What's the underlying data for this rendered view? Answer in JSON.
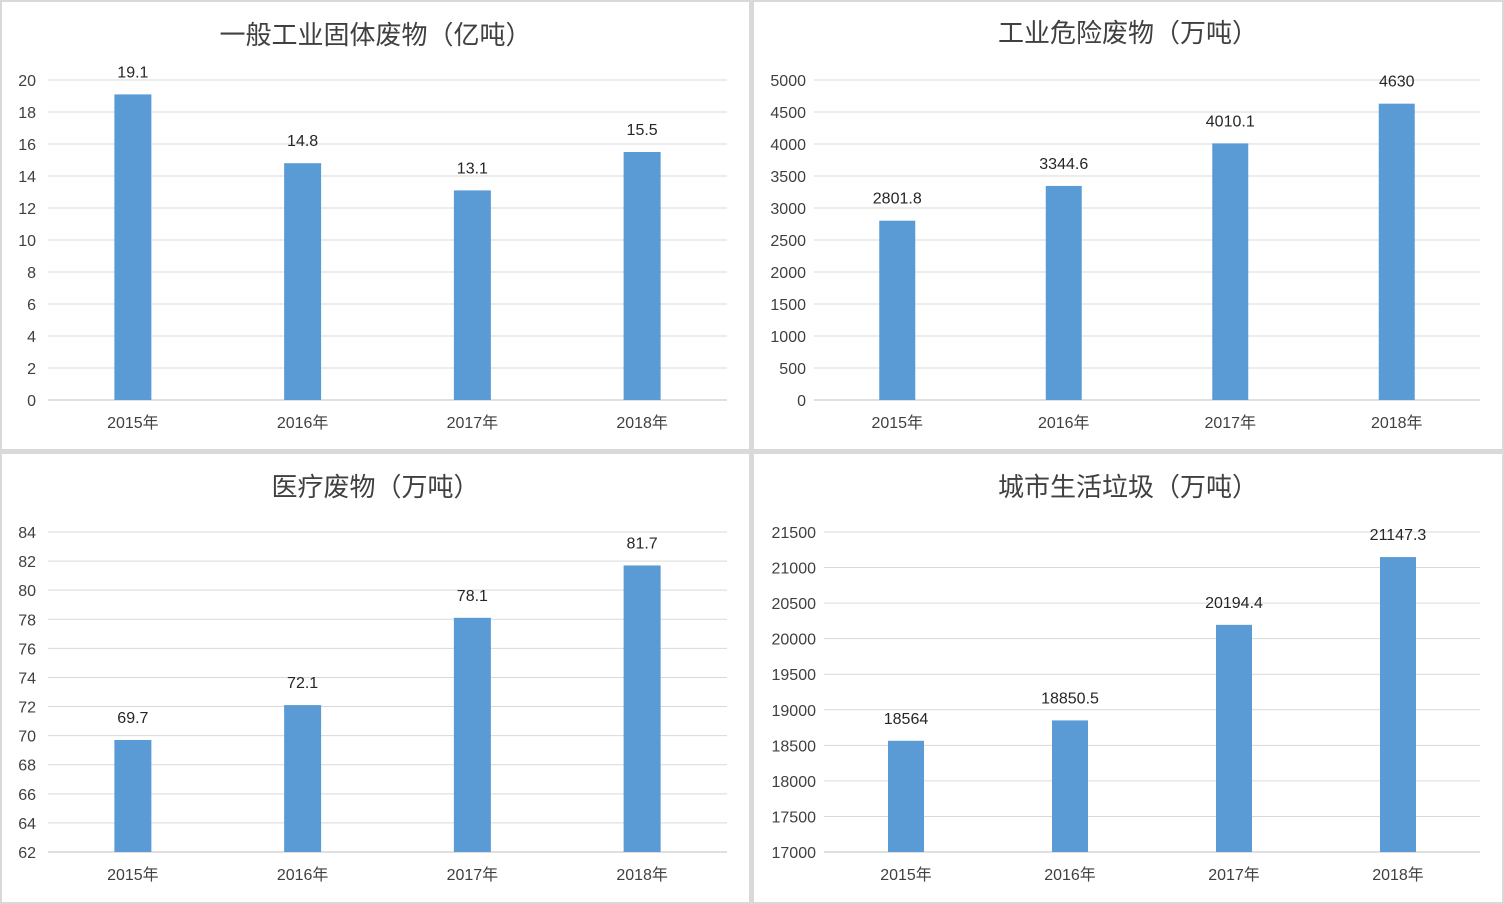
{
  "colors": {
    "bar": "#5b9bd5"
  },
  "chart_data": [
    {
      "type": "bar",
      "title": "一般工业固体废物（亿吨）",
      "categories": [
        "2015年",
        "2016年",
        "2017年",
        "2018年"
      ],
      "values": [
        19.1,
        14.8,
        13.1,
        15.5
      ],
      "value_labels": [
        "19.1",
        "14.8",
        "13.1",
        "15.5"
      ],
      "ylim": [
        0,
        20
      ],
      "yticks": [
        0,
        2,
        4,
        6,
        8,
        10,
        12,
        14,
        16,
        18,
        20
      ],
      "grid": true,
      "xlabel": "",
      "ylabel": ""
    },
    {
      "type": "bar",
      "title": "工业危险废物（万吨）",
      "categories": [
        "2015年",
        "2016年",
        "2017年",
        "2018年"
      ],
      "values": [
        2801.8,
        3344.6,
        4010.1,
        4630
      ],
      "value_labels": [
        "2801.8",
        "3344.6",
        "4010.1",
        "4630"
      ],
      "ylim": [
        0,
        5000
      ],
      "yticks": [
        0,
        500,
        1000,
        1500,
        2000,
        2500,
        3000,
        3500,
        4000,
        4500,
        5000
      ],
      "grid": true,
      "xlabel": "",
      "ylabel": ""
    },
    {
      "type": "bar",
      "title": "医疗废物（万吨）",
      "categories": [
        "2015年",
        "2016年",
        "2017年",
        "2018年"
      ],
      "values": [
        69.7,
        72.1,
        78.1,
        81.7
      ],
      "value_labels": [
        "69.7",
        "72.1",
        "78.1",
        "81.7"
      ],
      "ylim": [
        62,
        84
      ],
      "yticks": [
        62,
        64,
        66,
        68,
        70,
        72,
        74,
        76,
        78,
        80,
        82,
        84
      ],
      "grid": true,
      "xlabel": "",
      "ylabel": ""
    },
    {
      "type": "bar",
      "title": "城市生活垃圾（万吨）",
      "categories": [
        "2015年",
        "2016年",
        "2017年",
        "2018年"
      ],
      "values": [
        18564,
        18850.5,
        20194.4,
        21147.3
      ],
      "value_labels": [
        "18564",
        "18850.5",
        "20194.4",
        "21147.3"
      ],
      "ylim": [
        17000,
        21500
      ],
      "yticks": [
        17000,
        17500,
        18000,
        18500,
        19000,
        19500,
        20000,
        20500,
        21000,
        21500
      ],
      "grid": true,
      "xlabel": "",
      "ylabel": ""
    }
  ]
}
